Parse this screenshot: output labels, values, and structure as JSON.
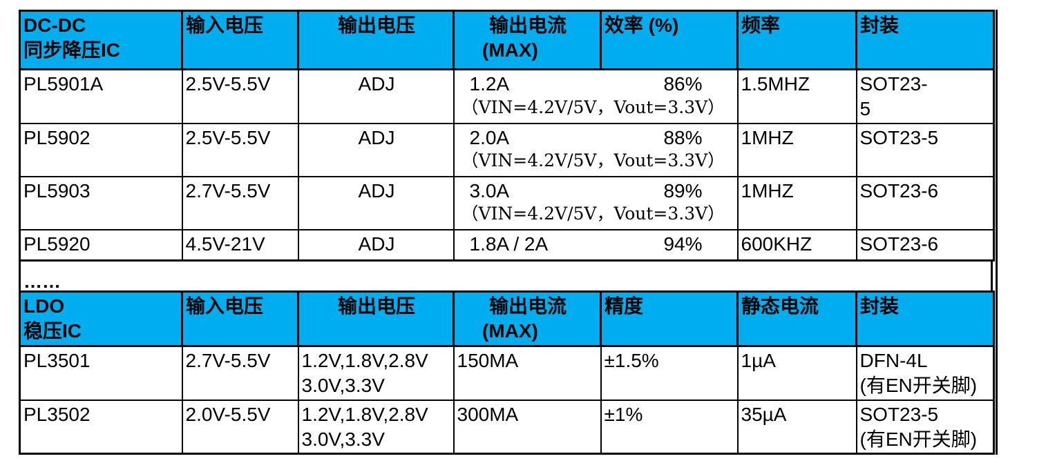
{
  "colors": {
    "header_bg": "#00AEEF",
    "border": "#000000",
    "text": "#000000"
  },
  "t1": {
    "header": {
      "title1": "DC-DC",
      "title2": "同步降压IC",
      "vin": "输入电压",
      "vout": "输出电压",
      "iout1": "输出电流",
      "iout2": "(MAX)",
      "eff": "效率 (%)",
      "freq": "频率",
      "pkg": "封装"
    },
    "rows": [
      {
        "model": "PL5901A",
        "vin": "2.5V-5.5V",
        "vout": "ADJ",
        "iout": "1.2A",
        "eff": "86%",
        "cond": "（VIN=4.2V/5V，Vout=3.3V）",
        "freq": "1.5MHZ",
        "pkg": "SOT23-\n5"
      },
      {
        "model": "PL5902",
        "vin": "2.5V-5.5V",
        "vout": "ADJ",
        "iout": "2.0A",
        "eff": "88%",
        "cond": "（VIN=4.2V/5V，Vout=3.3V）",
        "freq": "1MHZ",
        "pkg": "SOT23-5"
      },
      {
        "model": "PL5903",
        "vin": "2.7V-5.5V",
        "vout": "ADJ",
        "iout": "3.0A",
        "eff": "89%",
        "cond": "（VIN=4.2V/5V，Vout=3.3V）",
        "freq": "1MHZ",
        "pkg": "SOT23-6"
      },
      {
        "model": "PL5920",
        "vin": "4.5V-21V",
        "vout": "ADJ",
        "iout": "1.8A / 2A",
        "eff": "94%",
        "freq": "600KHZ",
        "pkg": "SOT23-6"
      }
    ]
  },
  "separator": {
    "label": "……"
  },
  "t2": {
    "header": {
      "title1": "LDO",
      "title2": "稳压IC",
      "vin": "输入电压",
      "vout": "输出电压",
      "iout1": "输出电流",
      "iout2": "(MAX)",
      "acc": "精度",
      "iq": "静态电流",
      "pkg": "封装"
    },
    "rows": [
      {
        "model": "PL3501",
        "vin": "2.7V-5.5V",
        "vout": "1.2V,1.8V,2.8V\n3.0V,3.3V",
        "iout": "150MA",
        "acc": "±1.5%",
        "iq": "1µA",
        "pkg": "DFN-4L\n(有EN开关脚)"
      },
      {
        "model": "PL3502",
        "vin": "2.0V-5.5V",
        "vout": "1.2V,1.8V,2.8V\n3.0V,3.3V",
        "iout": "300MA",
        "acc": "±1%",
        "iq": "35µA",
        "pkg": "SOT23-5\n(有EN开关脚)"
      }
    ]
  }
}
